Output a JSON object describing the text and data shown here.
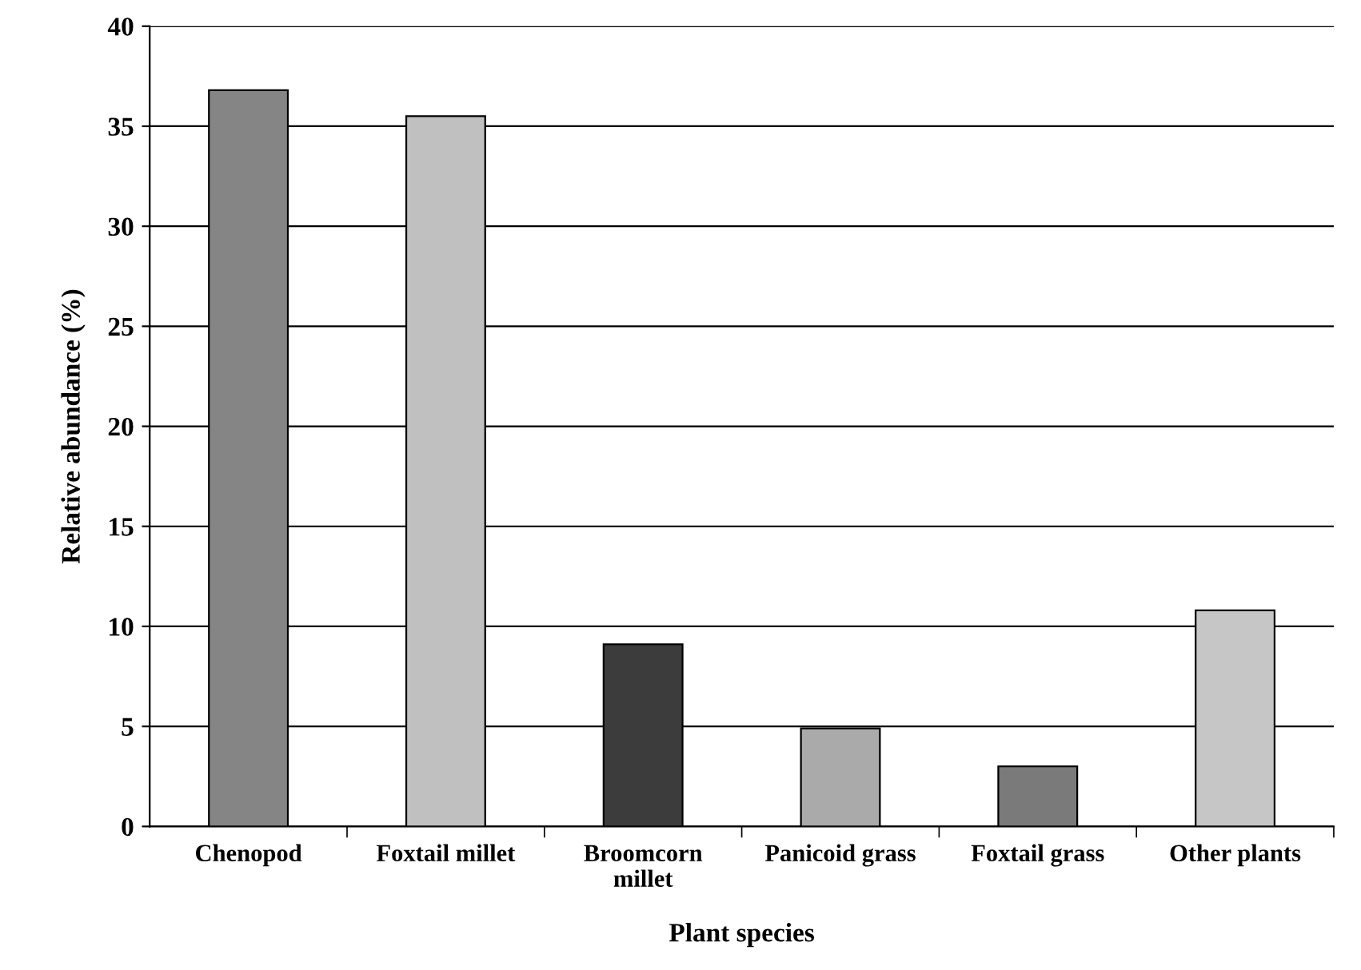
{
  "chart_data": {
    "type": "bar",
    "xlabel": "Plant species",
    "ylabel": "Relative abundance (%)",
    "categories": [
      "Chenopod",
      "Foxtail millet",
      "Broomcorn\nmillet",
      "Panicoid grass",
      "Foxtail grass",
      "Other plants"
    ],
    "values": [
      36.8,
      35.5,
      9.1,
      4.9,
      3.0,
      10.8
    ],
    "colors": [
      "#858585",
      "#c0c0c0",
      "#3c3c3c",
      "#aaaaaa",
      "#7a7a7a",
      "#c6c6c6"
    ],
    "ylim": [
      0,
      40
    ],
    "yticks": [
      0,
      5,
      10,
      15,
      20,
      25,
      30,
      35,
      40
    ],
    "grid": "y"
  }
}
